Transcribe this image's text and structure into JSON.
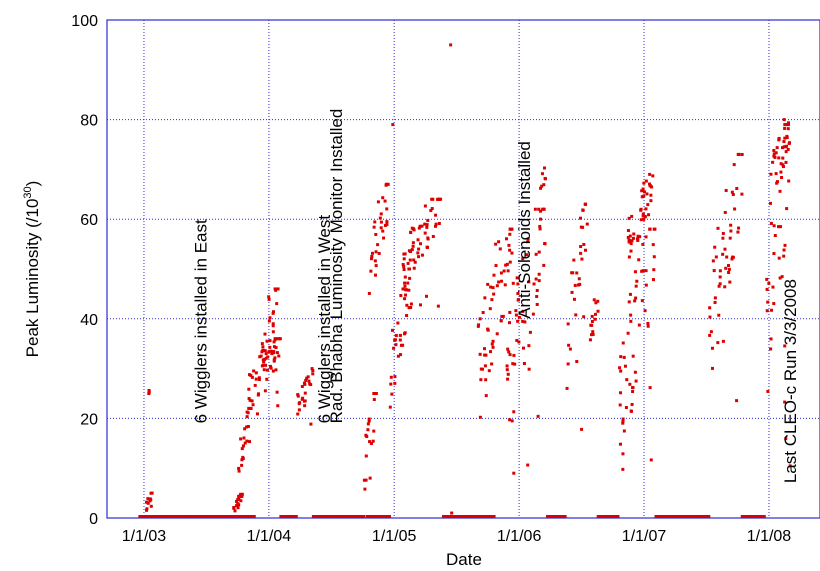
{
  "chart_data": {
    "type": "scatter",
    "xlabel": "Date",
    "ylabel": "Peak Luminosity (/10",
    "ylabel_sup": "30",
    "ylabel_close": ")",
    "ylim": [
      0,
      100
    ],
    "xlim": [
      "2002-09-15",
      "2008-06-01"
    ],
    "x_ticks": [
      {
        "date": "2003-01-01",
        "label": "1/1/03"
      },
      {
        "date": "2004-01-01",
        "label": "1/1/04"
      },
      {
        "date": "2005-01-01",
        "label": "1/1/05"
      },
      {
        "date": "2006-01-01",
        "label": "1/1/06"
      },
      {
        "date": "2007-01-01",
        "label": "1/1/07"
      },
      {
        "date": "2008-01-01",
        "label": "1/1/08"
      }
    ],
    "y_ticks": [
      0,
      20,
      40,
      60,
      80,
      100
    ],
    "grid": true,
    "marker_color": "#dd0000",
    "grid_color": "#2b2bd4",
    "annotations": [
      {
        "date": "2003-06-15",
        "y": 19,
        "text": "6 Wigglers installed in East"
      },
      {
        "date": "2004-06-10",
        "y": 19,
        "text": "6 Wigglers installed in West"
      },
      {
        "date": "2004-07-15",
        "y": 19,
        "text": "Rad. Bhabha Luminosity Monitor Installed"
      },
      {
        "date": "2006-01-15",
        "y": 40,
        "text": "Anti-Solenoids Installed"
      },
      {
        "date": "2008-03-03",
        "y": 7,
        "text": "Last CLEO-c Run 3/3/2008"
      }
    ],
    "zero_spans": [
      [
        "2002-12-20",
        "2003-11-20"
      ],
      [
        "2004-02-05",
        "2004-03-25"
      ],
      [
        "2004-05-10",
        "2004-10-05"
      ],
      [
        "2004-10-15",
        "2004-12-20"
      ],
      [
        "2005-05-25",
        "2005-10-25"
      ],
      [
        "2006-03-25",
        "2006-05-20"
      ],
      [
        "2006-08-20",
        "2006-10-20"
      ],
      [
        "2007-02-05",
        "2007-07-10"
      ],
      [
        "2007-10-15",
        "2007-12-20"
      ]
    ],
    "segments": [
      {
        "start": "2003-01-05",
        "end": "2003-01-25",
        "lo": 0,
        "hi": 5
      },
      {
        "start": "2003-01-15",
        "end": "2003-01-17",
        "lo": 24,
        "hi": 26
      },
      {
        "start": "2003-09-20",
        "end": "2003-10-20",
        "lo": 0,
        "hi": 5
      },
      {
        "start": "2003-10-01",
        "end": "2003-11-10",
        "lo": 5,
        "hi": 22
      },
      {
        "start": "2003-11-01",
        "end": "2004-02-05",
        "lo": 18,
        "hi": 36
      },
      {
        "start": "2003-12-10",
        "end": "2004-02-01",
        "lo": 25,
        "hi": 46
      },
      {
        "start": "2004-03-25",
        "end": "2004-05-10",
        "lo": 17,
        "hi": 30
      },
      {
        "start": "2004-10-05",
        "end": "2004-11-10",
        "lo": 0,
        "hi": 25
      },
      {
        "start": "2004-10-20",
        "end": "2004-12-15",
        "lo": 37,
        "hi": 67
      },
      {
        "start": "2004-12-20",
        "end": "2005-02-20",
        "lo": 18,
        "hi": 50
      },
      {
        "start": "2005-01-25",
        "end": "2005-05-20",
        "lo": 42,
        "hi": 64
      },
      {
        "start": "2005-09-01",
        "end": "2005-12-15",
        "lo": 14,
        "hi": 58
      },
      {
        "start": "2005-11-25",
        "end": "2006-03-20",
        "lo": 7,
        "hi": 62
      },
      {
        "start": "2006-03-01",
        "end": "2006-03-20",
        "lo": 55,
        "hi": 71
      },
      {
        "start": "2006-05-20",
        "end": "2006-07-20",
        "lo": 17,
        "hi": 63
      },
      {
        "start": "2006-07-25",
        "end": "2006-08-20",
        "lo": 30,
        "hi": 45
      },
      {
        "start": "2006-10-20",
        "end": "2007-02-05",
        "lo": 2,
        "hi": 58
      },
      {
        "start": "2006-11-15",
        "end": "2007-02-05",
        "lo": 48,
        "hi": 69
      },
      {
        "start": "2007-07-10",
        "end": "2007-10-15",
        "lo": 16,
        "hi": 73
      },
      {
        "start": "2007-12-20",
        "end": "2008-03-03",
        "lo": 7,
        "hi": 80
      },
      {
        "start": "2008-01-05",
        "end": "2008-03-01",
        "lo": 60,
        "hi": 79
      }
    ],
    "outliers": [
      {
        "date": "2005-06-15",
        "y": 95
      },
      {
        "date": "2004-12-28",
        "y": 79
      },
      {
        "date": "2005-06-18",
        "y": 1
      }
    ]
  }
}
